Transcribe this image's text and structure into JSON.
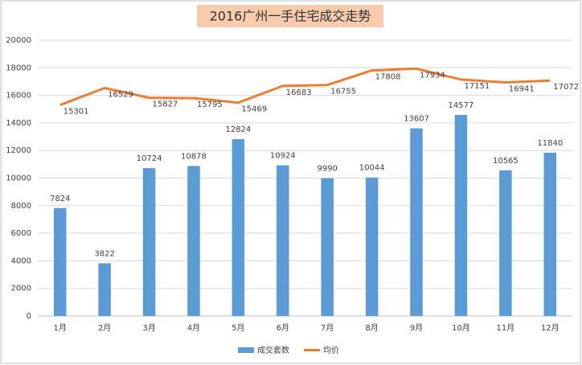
{
  "chart_data": {
    "type": "combo",
    "title": "2016广州一手住宅成交走势",
    "categories": [
      "1月",
      "2月",
      "3月",
      "4月",
      "5月",
      "6月",
      "7月",
      "8月",
      "9月",
      "10月",
      "11月",
      "12月"
    ],
    "series": [
      {
        "name": "成交套数",
        "type": "bar",
        "color": "#5b9bd5",
        "values": [
          7824,
          3822,
          10724,
          10878,
          12824,
          10924,
          9990,
          10044,
          13607,
          14577,
          10565,
          11840
        ]
      },
      {
        "name": "均价",
        "type": "line",
        "color": "#ed7d31",
        "values": [
          15301,
          16529,
          15827,
          15795,
          15469,
          16683,
          16755,
          17808,
          17934,
          17151,
          16941,
          17072
        ]
      }
    ],
    "ylim": [
      0,
      20000
    ],
    "yticks": [
      0,
      2000,
      4000,
      6000,
      8000,
      10000,
      12000,
      14000,
      16000,
      18000,
      20000
    ],
    "grid": true,
    "legend": "bottom"
  }
}
